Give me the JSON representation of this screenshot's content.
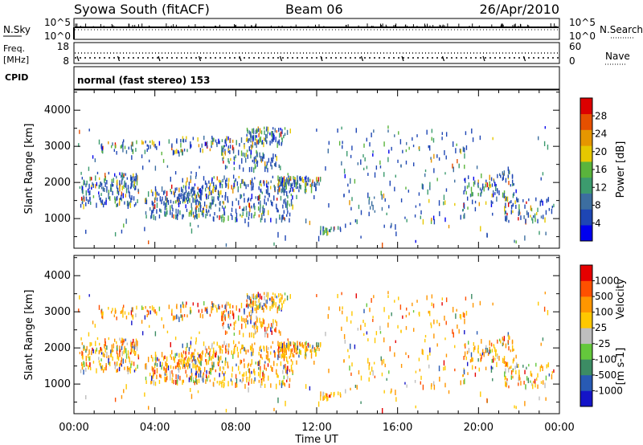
{
  "header": {
    "title": "Syowa South (fitACF)",
    "beam": "Beam 06",
    "date": "26/Apr/2010"
  },
  "strip_noise": {
    "left_label": "N.Sky",
    "left_ticks": [
      "10^5",
      "10^0"
    ],
    "right_ticks": [
      "10^5",
      "10^0"
    ],
    "right_label": "N.Search"
  },
  "strip_freq": {
    "left_label_top": "Freq.",
    "left_label_unit": "[MHz]",
    "left_ticks": [
      "18",
      "8"
    ],
    "right_ticks": [
      "60",
      "0"
    ],
    "right_label": "Nave"
  },
  "cpid": {
    "label": "CPID",
    "text": "normal (fast stereo) 153"
  },
  "chart_data": [
    {
      "type": "heatmap",
      "quantity": "power",
      "ylabel": "Slant Range [km]",
      "ylim": [
        180,
        4560
      ],
      "yticks": [
        "1000",
        "2000",
        "3000",
        "4000"
      ],
      "colorbar_label": "Power [dB]",
      "colorbar_ticks": [
        "28",
        "24",
        "20",
        "16",
        "12",
        "8",
        "4"
      ],
      "colorbar_range": [
        0,
        32
      ],
      "colorbar_colors": [
        "#0000ee",
        "#1e46b4",
        "#3c6ea0",
        "#3c9b6e",
        "#5ab43c",
        "#e6c800",
        "#e69600",
        "#e65000",
        "#dc0000"
      ]
    },
    {
      "type": "heatmap",
      "quantity": "velocity",
      "ylabel": "Slant Range [km]",
      "ylim": [
        180,
        4560
      ],
      "yticks": [
        "1000",
        "2000",
        "3000",
        "4000"
      ],
      "colorbar_label": "Velocity",
      "colorbar_unit": "[m s-1]",
      "colorbar_ticks": [
        "1000",
        "500",
        "100",
        "25",
        "-25",
        "-100",
        "-500",
        "-1000"
      ],
      "colorbar_colors": [
        "#1414c8",
        "#285ab4",
        "#3c8c64",
        "#64c83c",
        "#bebebe",
        "#ffc800",
        "#ff9600",
        "#ff5000",
        "#e60000"
      ]
    }
  ],
  "xaxis": {
    "label": "Time UT",
    "ticks": [
      "00:00",
      "04:00",
      "08:00",
      "12:00",
      "16:00",
      "20:00",
      "00:00"
    ],
    "range_hours": [
      0,
      24
    ]
  }
}
